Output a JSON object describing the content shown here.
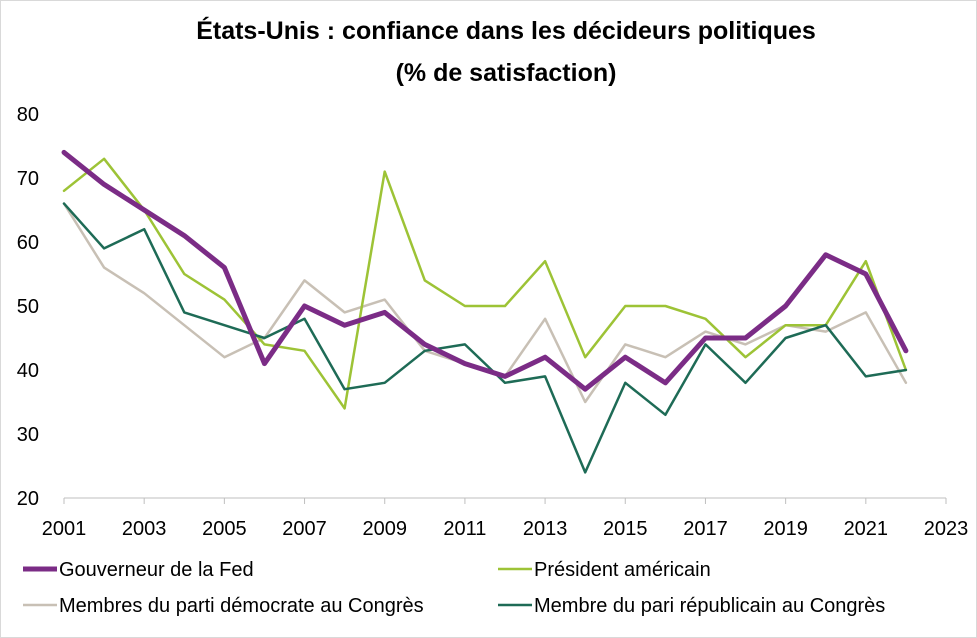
{
  "chart_data": {
    "type": "line",
    "title_line1": "États-Unis : confiance dans les décideurs politiques",
    "title_line2": "(% de satisfaction)",
    "xlim": [
      2001,
      2023
    ],
    "ylim": [
      20,
      80
    ],
    "x_ticks": [
      "2001",
      "2003",
      "2005",
      "2007",
      "2009",
      "2011",
      "2013",
      "2015",
      "2017",
      "2019",
      "2021",
      "2023"
    ],
    "y_ticks": [
      "80",
      "70",
      "60",
      "50",
      "40",
      "30",
      "20"
    ],
    "grid": false,
    "legend_position": "bottom",
    "x": [
      2001,
      2002,
      2003,
      2004,
      2005,
      2006,
      2007,
      2008,
      2009,
      2010,
      2011,
      2012,
      2013,
      2014,
      2015,
      2016,
      2017,
      2018,
      2019,
      2020,
      2021,
      2022
    ],
    "series": [
      {
        "name": "Gouverneur de la Fed",
        "color": "#7b2c86",
        "width": 5,
        "values": [
          74,
          69,
          65,
          61,
          56,
          41,
          50,
          47,
          49,
          44,
          41,
          39,
          42,
          37,
          42,
          38,
          45,
          45,
          50,
          58,
          55,
          43
        ]
      },
      {
        "name": "Président américain",
        "color": "#9dc336",
        "width": 2.5,
        "values": [
          68,
          73,
          65,
          55,
          51,
          44,
          43,
          34,
          71,
          54,
          50,
          50,
          57,
          42,
          50,
          50,
          48,
          42,
          47,
          47,
          57,
          40
        ]
      },
      {
        "name": "Membres du parti démocrate au Congrès",
        "color": "#c8c0b5",
        "width": 2.5,
        "values": [
          66,
          56,
          52,
          47,
          42,
          45,
          54,
          49,
          51,
          43,
          41,
          39,
          48,
          35,
          44,
          42,
          46,
          44,
          47,
          46,
          49,
          38
        ]
      },
      {
        "name": "Membre du pari républicain au Congrès",
        "color": "#1e6b56",
        "width": 2.5,
        "values": [
          66,
          59,
          62,
          49,
          47,
          45,
          48,
          37,
          38,
          43,
          44,
          38,
          39,
          24,
          38,
          33,
          44,
          38,
          45,
          47,
          39,
          40
        ]
      }
    ]
  }
}
